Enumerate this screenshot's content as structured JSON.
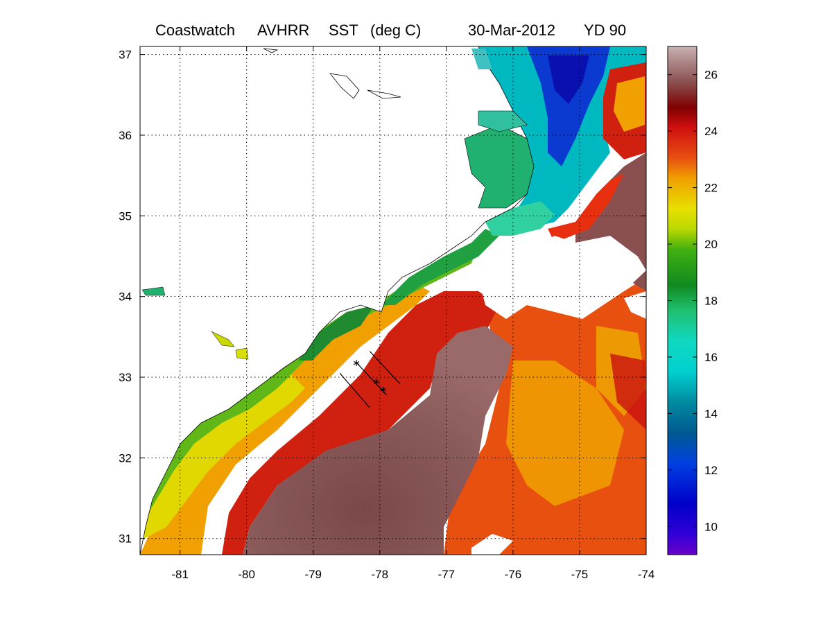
{
  "title": {
    "source": "Coastwatch",
    "sensor": "AVHRR",
    "product": "SST",
    "units": "(deg C)",
    "date": "30-Mar-2012",
    "yearday": "YD 90"
  },
  "map": {
    "lon_range": [
      -81.6,
      -74
    ],
    "lat_range": [
      30.8,
      37.1
    ],
    "lon_ticks": [
      -81,
      -80,
      -79,
      -78,
      -77,
      -76,
      -75,
      -74
    ],
    "lat_ticks": [
      31,
      32,
      33,
      34,
      35,
      36,
      37
    ],
    "lon_tick_labels": [
      "-81",
      "-80",
      "-79",
      "-78",
      "-77",
      "-76",
      "-75",
      "-74"
    ],
    "lat_tick_labels": [
      "31",
      "32",
      "33",
      "34",
      "35",
      "36",
      "37"
    ],
    "grid": "dotted"
  },
  "colorbar": {
    "range": [
      9,
      27
    ],
    "ticks": [
      10,
      12,
      14,
      16,
      18,
      20,
      22,
      24,
      26
    ],
    "tick_labels": [
      "10",
      "12",
      "14",
      "16",
      "18",
      "20",
      "22",
      "24",
      "26"
    ],
    "colormap": [
      "#6a00c8",
      "#0000c8",
      "#0040e0",
      "#006aa0",
      "#00b8b8",
      "#00e0d0",
      "#10c070",
      "#108a20",
      "#40b010",
      "#d8e000",
      "#f0a000",
      "#e85010",
      "#d01010",
      "#800000",
      "#8a5050",
      "#c8a8a8"
    ]
  },
  "chart_data": {
    "type": "heatmap",
    "variable": "SST",
    "units": "deg C",
    "x": [
      -81,
      -80,
      -79,
      -78,
      -77,
      -76,
      -75,
      -74
    ],
    "y": [
      31,
      32,
      33,
      34,
      35,
      36,
      37
    ],
    "value_range": [
      9,
      27
    ],
    "transects": [
      {
        "lon": [
          -78.6,
          -78.15
        ],
        "lat": [
          33.05,
          32.62
        ]
      },
      {
        "lon": [
          -78.35,
          -77.9
        ],
        "lat": [
          33.18,
          32.78
        ]
      },
      {
        "lon": [
          -78.15,
          -77.7
        ],
        "lat": [
          33.32,
          32.92
        ]
      }
    ],
    "stations": [
      {
        "lon": [
          -78.35
        ],
        "lat": [
          33.18
        ]
      },
      {
        "lon": [
          -78.05
        ],
        "lat": [
          32.95
        ]
      },
      {
        "lon": [
          -77.95
        ],
        "lat": [
          32.85
        ]
      }
    ]
  },
  "colors": {
    "gulf_stream": "#8a5a5a",
    "shelf_warm": "#d82010",
    "shelf_mid": "#f0b000",
    "nearshore": "#30a030",
    "cold_north": "#0a20c0",
    "land": "#ffffff",
    "cloud": "#ffffff"
  }
}
